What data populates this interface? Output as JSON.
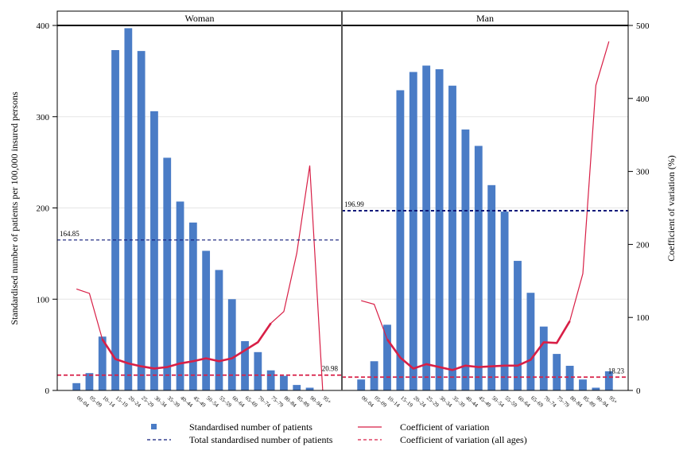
{
  "chart_data": {
    "type": "bar",
    "categories": [
      "00–04",
      "05–09",
      "10–14",
      "15–19",
      "20–24",
      "25–29",
      "30–34",
      "35–39",
      "40–44",
      "45–49",
      "50–54",
      "55–59",
      "60–64",
      "65–69",
      "70–74",
      "75–79",
      "80–84",
      "85–89",
      "90–94",
      "95+"
    ],
    "ylabel": "Standardised number of patients per 100,000 insured persons",
    "y2label": "Coefficient of variation (%)",
    "ylim": [
      0,
      400
    ],
    "y2lim": [
      0,
      500
    ],
    "yticks": [
      "0",
      "100",
      "200",
      "300",
      "400"
    ],
    "y2ticks": [
      "0",
      "100",
      "200",
      "300",
      "400",
      "500"
    ],
    "panels": [
      {
        "name": "Woman",
        "bars": [
          8,
          19,
          59,
          373,
          397,
          372,
          306,
          255,
          207,
          184,
          153,
          132,
          100,
          54,
          42,
          22,
          16,
          6,
          3,
          0
        ],
        "total": 164.85,
        "total_label": "164.85",
        "cv_thick": [
          null,
          null,
          70,
          43,
          37,
          33,
          30,
          32,
          37,
          40,
          44,
          40,
          44,
          55,
          66,
          92,
          null,
          null,
          null,
          null
        ],
        "cv_thin": [
          139,
          133,
          70,
          43,
          37,
          33,
          30,
          32,
          37,
          40,
          44,
          40,
          44,
          55,
          66,
          92,
          108,
          188,
          308,
          0
        ],
        "cv_all": 20.98,
        "cv_all_label": "20.98"
      },
      {
        "name": "Man",
        "bars": [
          12,
          32,
          72,
          329,
          349,
          356,
          352,
          334,
          286,
          268,
          225,
          196,
          142,
          107,
          70,
          40,
          27,
          12,
          3,
          21
        ],
        "total": 196.99,
        "total_label": "196.99",
        "cv_thick": [
          null,
          null,
          70,
          45,
          30,
          36,
          32,
          28,
          34,
          32,
          33,
          34,
          34,
          42,
          66,
          65,
          95,
          null,
          null,
          null
        ],
        "cv_thin": [
          123,
          118,
          70,
          45,
          30,
          36,
          32,
          28,
          34,
          32,
          33,
          34,
          34,
          42,
          66,
          65,
          95,
          160,
          418,
          478
        ],
        "cv_all": 18.23,
        "cv_all_label": "18.23"
      }
    ],
    "legend": [
      {
        "label": "Standardised number of patients",
        "kind": "bar"
      },
      {
        "label": "Coefficient of variation",
        "kind": "line"
      },
      {
        "label": "Total standardised number of patients",
        "kind": "dash-navy"
      },
      {
        "label": "Coefficient of variation (all ages)",
        "kind": "dash-red"
      }
    ],
    "colors": {
      "bar": "#4a7cc6",
      "cv": "#d81f46",
      "total": "#0f1a7a",
      "grid": "#e6e6e6"
    }
  }
}
